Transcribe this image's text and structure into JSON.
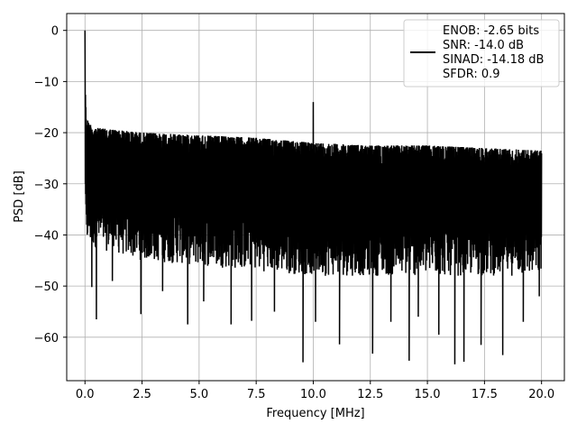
{
  "chart_data": {
    "type": "line",
    "xlabel": "Frequency [MHz]",
    "ylabel": "PSD [dB]",
    "xlim": [
      -0.8,
      21.0
    ],
    "ylim": [
      -68.5,
      3.3
    ],
    "x_ticks": [
      0.0,
      2.5,
      5.0,
      7.5,
      10.0,
      12.5,
      15.0,
      17.5,
      20.0
    ],
    "x_tick_labels": [
      "0.0",
      "2.5",
      "5.0",
      "7.5",
      "10.0",
      "12.5",
      "15.0",
      "17.5",
      "20.0"
    ],
    "y_ticks": [
      0,
      -10,
      -20,
      -30,
      -40,
      -50,
      -60
    ],
    "y_tick_labels": [
      "0",
      "−10",
      "−20",
      "−30",
      "−40",
      "−50",
      "−60"
    ],
    "grid": true,
    "legend_position": "top-right",
    "series": [
      {
        "name": "ENOB: -2.65 bits\nSNR: -14.0 dB\nSINAD: -14.18 dB\nSFDR: 0.9",
        "color": "#000000",
        "x_range": [
          0.0,
          20.0
        ],
        "noise_floor_db": -31,
        "peaks": [
          {
            "x": 0.0,
            "y": 0.0
          },
          {
            "x": 10.0,
            "y": -14.0
          }
        ],
        "upper_envelope": {
          "x": [
            0.0,
            0.15,
            0.4,
            2.5,
            5.0,
            7.5,
            10.0,
            12.5,
            15.0,
            17.5,
            20.0
          ],
          "y": [
            -15,
            -18,
            -19,
            -20,
            -20.5,
            -21,
            -22,
            -22.5,
            -22.5,
            -23,
            -23.5
          ]
        },
        "lower_envelope": {
          "x": [
            0.0,
            2.5,
            5.0,
            7.5,
            10.0,
            12.5,
            15.0,
            17.5,
            20.0
          ],
          "y": [
            -42,
            -45,
            -46,
            -47,
            -48,
            -48,
            -48,
            -48,
            -48
          ]
        },
        "deep_dips": [
          {
            "x": 0.3,
            "y": -50.2
          },
          {
            "x": 0.5,
            "y": -56.5
          },
          {
            "x": 1.2,
            "y": -49
          },
          {
            "x": 2.45,
            "y": -55.5
          },
          {
            "x": 3.4,
            "y": -51
          },
          {
            "x": 4.5,
            "y": -57.5
          },
          {
            "x": 5.2,
            "y": -53
          },
          {
            "x": 6.4,
            "y": -57.5
          },
          {
            "x": 7.3,
            "y": -56.8
          },
          {
            "x": 8.3,
            "y": -55
          },
          {
            "x": 9.55,
            "y": -64.9
          },
          {
            "x": 10.1,
            "y": -57
          },
          {
            "x": 11.15,
            "y": -61.4
          },
          {
            "x": 12.6,
            "y": -63.2
          },
          {
            "x": 13.4,
            "y": -57
          },
          {
            "x": 14.2,
            "y": -64.6
          },
          {
            "x": 14.6,
            "y": -56
          },
          {
            "x": 15.5,
            "y": -59.5
          },
          {
            "x": 16.2,
            "y": -65.3
          },
          {
            "x": 16.6,
            "y": -64.8
          },
          {
            "x": 17.35,
            "y": -61.5
          },
          {
            "x": 18.3,
            "y": -63.5
          },
          {
            "x": 19.2,
            "y": -57
          },
          {
            "x": 19.9,
            "y": -52
          }
        ]
      }
    ]
  }
}
